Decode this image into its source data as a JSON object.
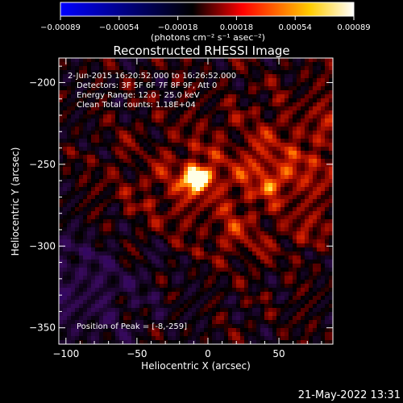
{
  "chart_data": {
    "type": "heatmap",
    "title": "Reconstructed RHESSI Image",
    "colorbar": {
      "colors": [
        "#0000ff",
        "#000000",
        "#ff0000",
        "#ffff00",
        "#ffffff"
      ],
      "range": [
        -0.00089,
        0.00089
      ],
      "tick_labels": [
        "-0.00089",
        "-0.00054",
        "-0.00018",
        "0.00018",
        "0.00054",
        "0.00089"
      ],
      "unit_label": "(photons cm⁻² s⁻¹ asec⁻²)"
    },
    "xlabel": "Heliocentric X (arcsec)",
    "ylabel": "Heliocentric Y (arcsec)",
    "xlim": [
      -105,
      88
    ],
    "ylim": [
      -360,
      -185
    ],
    "x_ticks": [
      -100,
      -50,
      0,
      50
    ],
    "x_tick_labels": [
      "-100",
      "-50",
      "0",
      "50"
    ],
    "y_ticks": [
      -200,
      -250,
      -300,
      -350
    ],
    "y_tick_labels": [
      "-200",
      "-250",
      "-300",
      "-350"
    ],
    "annotations": [
      "2-Jun-2015 16:20:52.000 to 16:26:52.000",
      "Detectors: 3F 5F 6F 7F 8F 9F, Att 0",
      "Energy Range: 12.0 - 25.0 keV",
      "Clean    Total counts: 1.18E+04"
    ],
    "peak_label": "Position of Peak = [-8,-259]",
    "peak": {
      "x": -8,
      "y": -259
    },
    "timestamp": "21-May-2022 13:31"
  }
}
